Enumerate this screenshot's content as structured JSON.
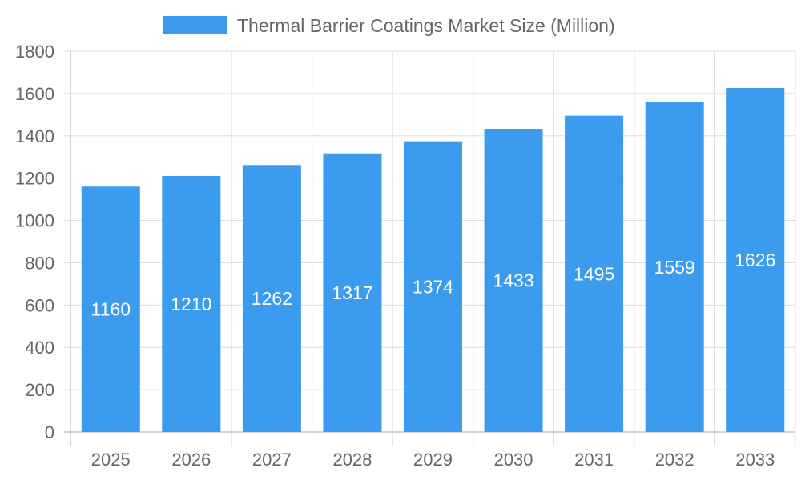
{
  "chart_data": {
    "type": "bar",
    "title": "",
    "xlabel": "",
    "ylabel": "",
    "categories": [
      "2025",
      "2026",
      "2027",
      "2028",
      "2029",
      "2030",
      "2031",
      "2032",
      "2033"
    ],
    "series": [
      {
        "name": "Thermal Barrier Coatings Market Size (Million)",
        "values": [
          1160,
          1210,
          1262,
          1317,
          1374,
          1433,
          1495,
          1559,
          1626
        ]
      }
    ],
    "ylim": [
      0,
      1800
    ],
    "yticks": [
      0,
      200,
      400,
      600,
      800,
      1000,
      1200,
      1400,
      1600,
      1800
    ],
    "grid": true,
    "legend": "top-center",
    "data_labels": "inside-center",
    "colors": {
      "bar": "#3a9bef",
      "text": "#666666",
      "grid": "#dddddd",
      "axis": "#aaaaaa",
      "label": "#ffffff"
    }
  }
}
